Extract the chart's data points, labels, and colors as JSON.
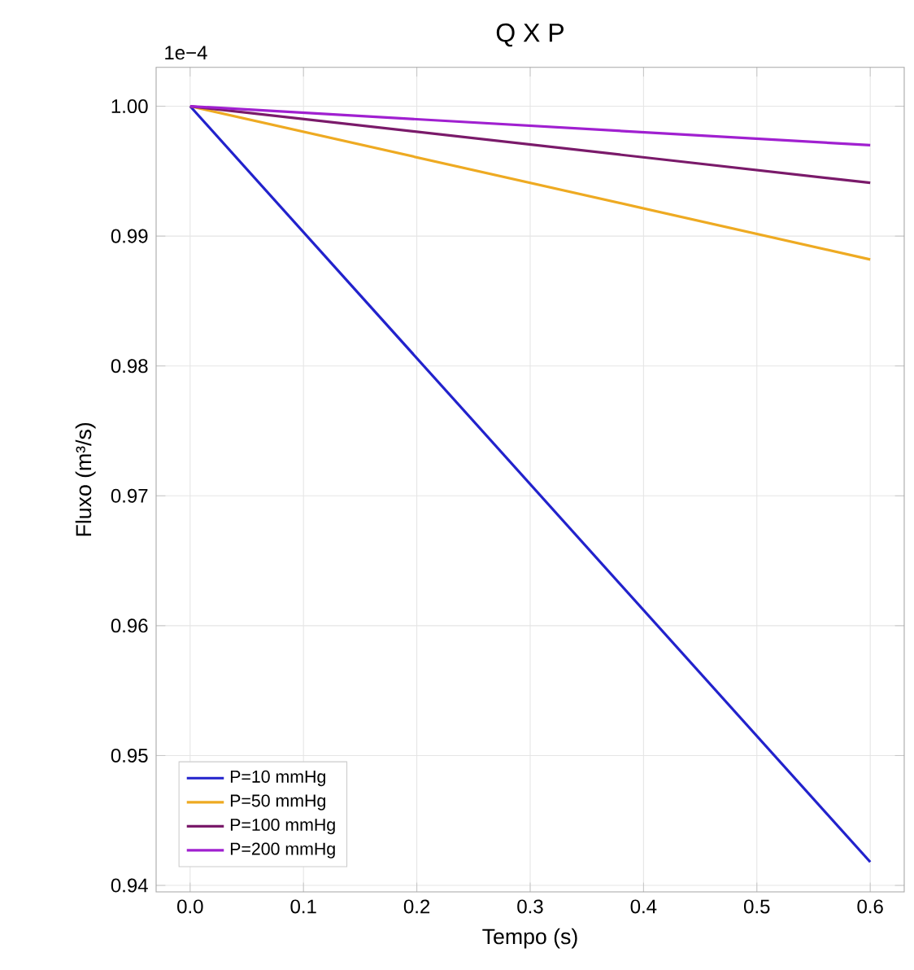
{
  "chart_data": {
    "type": "line",
    "title": "Q X P",
    "xlabel": "Tempo (s)",
    "ylabel": "Fluxo (m³/s)",
    "annotations": [
      "1e−4"
    ],
    "xlim": [
      -0.03,
      0.63
    ],
    "ylim": [
      0.9395,
      1.003
    ],
    "xticks": [
      {
        "value": 0,
        "label": "0.0"
      },
      0.1,
      0.2,
      0.3,
      0.4,
      0.5,
      0.6
    ],
    "yticks": [
      0.94,
      0.95,
      0.96,
      0.97,
      0.98,
      0.99,
      {
        "value": 1,
        "label": "1.00"
      }
    ],
    "grid": true,
    "legend": "bottom left",
    "x": [
      0,
      0.6
    ],
    "series": [
      {
        "name": "P=10 mmHg",
        "color": "#2222cc",
        "values": [
          1.0,
          0.9418
        ]
      },
      {
        "name": "P=50 mmHg",
        "color": "#eeaa22",
        "values": [
          1.0,
          0.9882
        ]
      },
      {
        "name": "P=100 mmHg",
        "color": "#7a1a6a",
        "values": [
          1.0,
          0.9941
        ]
      },
      {
        "name": "P=200 mmHg",
        "color": "#a020d0",
        "values": [
          1.0,
          0.997
        ]
      }
    ]
  }
}
